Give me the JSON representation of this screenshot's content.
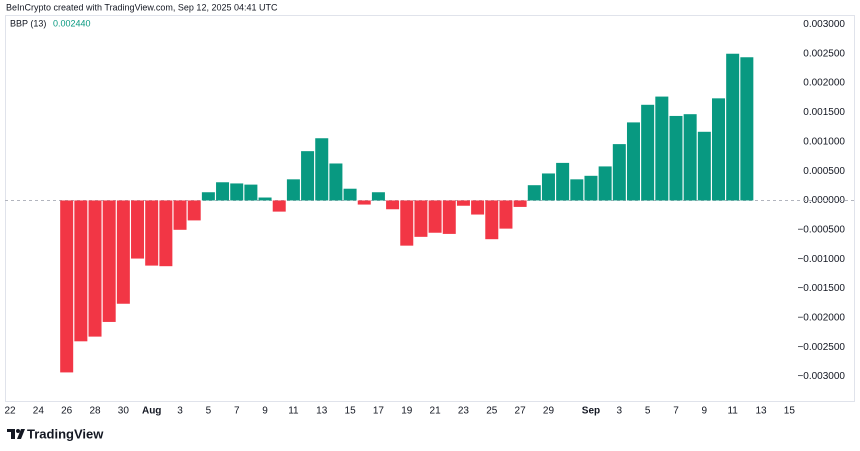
{
  "attribution": "BeInCrypto created with TradingView.com, Sep 12, 2025 04:41 UTC",
  "brand": "TradingView",
  "chart_data": {
    "type": "bar",
    "indicator": "BBP (13)",
    "indicator_value": "0.002440",
    "categories": [
      "22",
      null,
      "24",
      null,
      "26",
      null,
      "28",
      null,
      "30",
      null,
      "Aug",
      null,
      "3",
      null,
      "5",
      null,
      "7",
      null,
      "9",
      null,
      "11",
      null,
      "13",
      null,
      "15",
      null,
      "17",
      null,
      "19",
      null,
      "21",
      null,
      "23",
      null,
      "25",
      null,
      "27",
      null,
      "29",
      null,
      null,
      "Sep",
      null,
      "3",
      null,
      "5",
      null,
      "7",
      null,
      "9",
      null,
      "11",
      null,
      "13",
      null,
      "15"
    ],
    "values": [
      null,
      null,
      null,
      null,
      -0.00293,
      -0.0024,
      -0.00232,
      -0.00207,
      -0.00176,
      -0.00099,
      -0.00111,
      -0.00112,
      -0.0005,
      -0.00034,
      0.00014,
      0.00031,
      0.00029,
      0.00027,
      5e-05,
      -0.00019,
      0.00036,
      0.00084,
      0.00106,
      0.00063,
      0.0002,
      -7e-05,
      0.00014,
      -0.00015,
      -0.00077,
      -0.00062,
      -0.00055,
      -0.00057,
      -9e-05,
      -0.00024,
      -0.00066,
      -0.00048,
      -0.00011,
      0.00026,
      0.00046,
      0.00064,
      0.00036,
      0.00042,
      0.00058,
      0.00096,
      0.00133,
      0.00163,
      0.00177,
      0.00144,
      0.00147,
      0.00117,
      0.00174,
      0.0025,
      0.00244,
      null,
      null,
      null
    ],
    "up_color": "#089981",
    "down_color": "#f23645",
    "ylim": [
      -0.0034,
      0.00316
    ],
    "yticks": [
      {
        "value": 0.003,
        "label": "0.003000"
      },
      {
        "value": 0.0025,
        "label": "0.002500"
      },
      {
        "value": 0.002,
        "label": "0.002000"
      },
      {
        "value": 0.0015,
        "label": "0.001500"
      },
      {
        "value": 0.001,
        "label": "0.001000"
      },
      {
        "value": 0.0005,
        "label": "0.000500"
      },
      {
        "value": 0,
        "label": "0.000000"
      },
      {
        "value": -0.0005,
        "label": "−0.000500"
      },
      {
        "value": -0.001,
        "label": "−0.001000"
      },
      {
        "value": -0.0015,
        "label": "−0.001500"
      },
      {
        "value": -0.002,
        "label": "−0.002000"
      },
      {
        "value": -0.0025,
        "label": "−0.002500"
      },
      {
        "value": -0.003,
        "label": "−0.003000"
      }
    ],
    "grid": false,
    "zero_line": true
  }
}
